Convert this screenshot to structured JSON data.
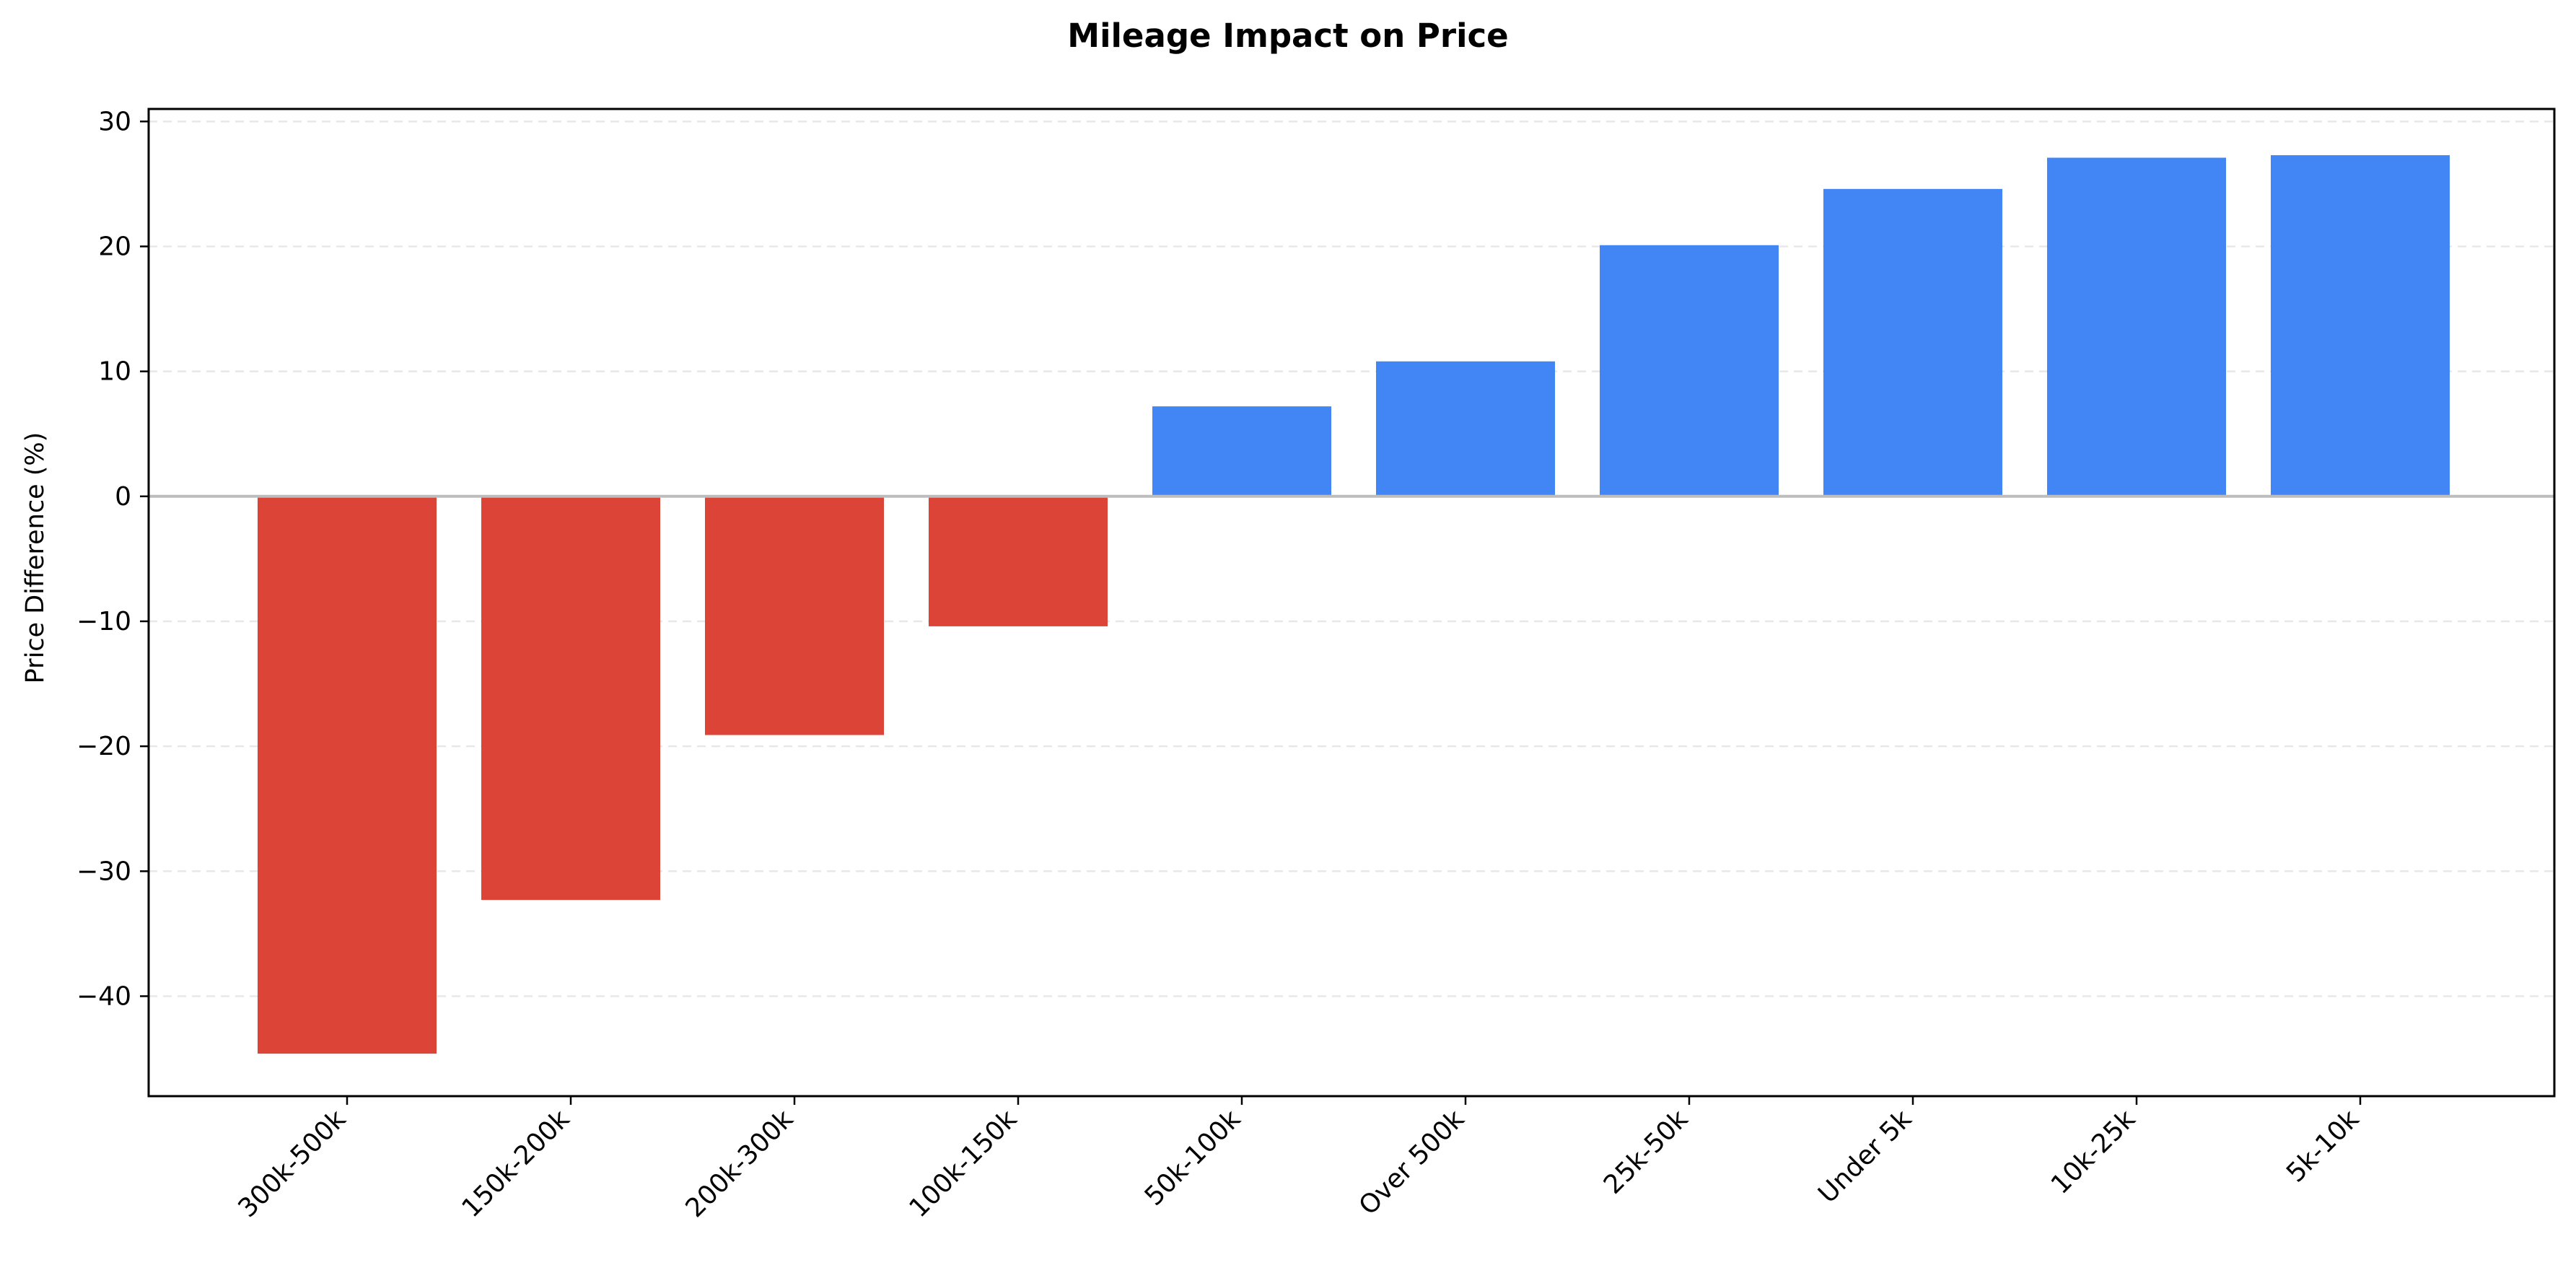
{
  "chart_data": {
    "type": "bar",
    "title": "Mileage Impact on Price",
    "xlabel": "",
    "ylabel": "Price Difference (%)",
    "categories": [
      "300k-500k",
      "150k-200k",
      "200k-300k",
      "100k-150k",
      "50k-100k",
      "Over 500k",
      "25k-50k",
      "Under 5k",
      "10k-25k",
      "5k-10k"
    ],
    "values": [
      -44.6,
      -32.3,
      -19.1,
      -10.4,
      7.2,
      10.8,
      20.1,
      24.6,
      27.1,
      27.3
    ],
    "ylim": [
      -48,
      31
    ],
    "yticks": [
      30,
      20,
      10,
      0,
      -10,
      -20,
      -30,
      -40
    ],
    "ytick_labels": [
      "30",
      "20",
      "10",
      "0",
      "−10",
      "−20",
      "−30",
      "−40"
    ],
    "grid": "y-dashed",
    "legend": "none",
    "colors": {
      "negative": "#db4437",
      "positive": "#4285f4",
      "zero_line": "#bdbdbd",
      "grid": "#e8e8e8"
    }
  }
}
